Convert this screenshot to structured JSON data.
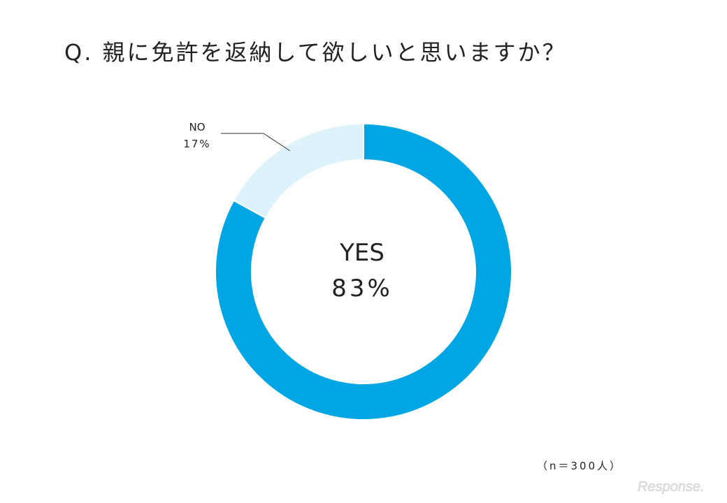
{
  "title": "Q. 親に免許を返納して欲しいと思いますか？",
  "chart_data": {
    "type": "pie",
    "donut": true,
    "categories": [
      "YES",
      "NO"
    ],
    "values": [
      83,
      17
    ],
    "value_labels": [
      "83%",
      "17%"
    ],
    "colors": [
      "#00a6e3",
      "#ddf3fb"
    ],
    "title": "Q. 親に免許を返納して欲しいと思いますか？"
  },
  "labels": {
    "yes_category": "YES",
    "yes_value": "83%",
    "no_category": "NO",
    "no_value": "17%"
  },
  "sample_size": "（n＝300人）",
  "watermark": "Response."
}
